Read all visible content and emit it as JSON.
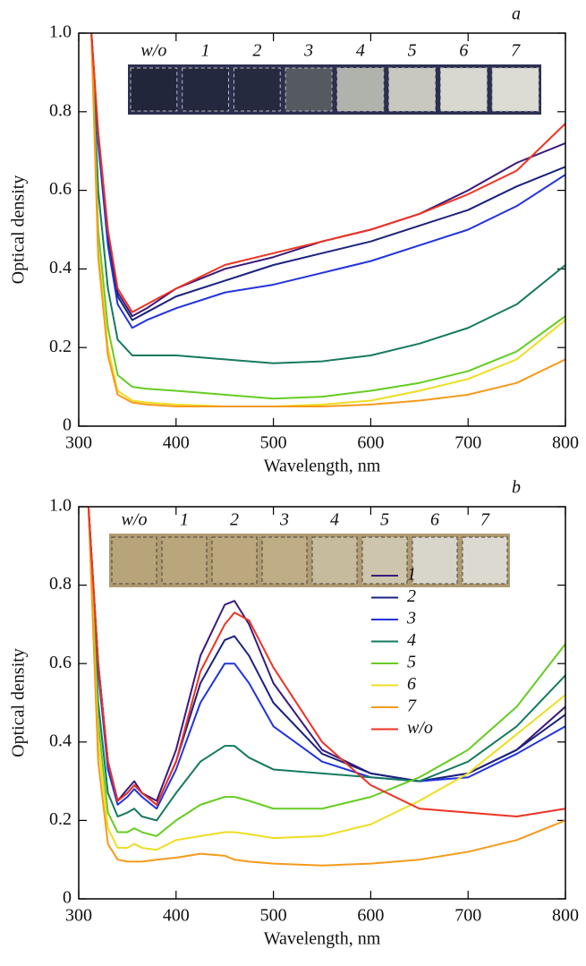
{
  "chart_data": [
    {
      "type": "line",
      "panel_label": "a",
      "xlabel": "Wavelength, nm",
      "ylabel": "Optical density",
      "inset_labels": [
        "w/o",
        "1",
        "2",
        "3",
        "4",
        "5",
        "6",
        "7"
      ],
      "xlim": [
        300,
        800
      ],
      "xticks": [
        300,
        400,
        500,
        600,
        700,
        800
      ],
      "ylim": [
        0,
        1
      ],
      "yticks": [
        0,
        0.2,
        0.4,
        0.6,
        0.8,
        {
          "value": 1,
          "label": "1.0"
        }
      ],
      "x": [
        313,
        320,
        330,
        340,
        355,
        370,
        400,
        450,
        500,
        550,
        600,
        650,
        700,
        750,
        800
      ],
      "series": [
        {
          "color": "#3a1a7a",
          "values": [
            1.0,
            0.74,
            0.49,
            0.34,
            0.28,
            0.3,
            0.35,
            0.4,
            0.43,
            0.47,
            0.5,
            0.54,
            0.6,
            0.67,
            0.72
          ]
        },
        {
          "color": "#1a237e",
          "values": [
            1.0,
            0.73,
            0.48,
            0.33,
            0.27,
            0.29,
            0.33,
            0.37,
            0.41,
            0.44,
            0.47,
            0.51,
            0.55,
            0.61,
            0.66
          ]
        },
        {
          "color": "#2233dd",
          "values": [
            1.0,
            0.72,
            0.46,
            0.31,
            0.25,
            0.27,
            0.3,
            0.34,
            0.36,
            0.39,
            0.42,
            0.46,
            0.5,
            0.56,
            0.64
          ]
        },
        {
          "color": "#167a5f",
          "values": [
            1.0,
            0.6,
            0.35,
            0.22,
            0.18,
            0.18,
            0.18,
            0.17,
            0.16,
            0.165,
            0.18,
            0.21,
            0.25,
            0.31,
            0.41
          ]
        },
        {
          "color": "#66cc22",
          "values": [
            1.0,
            0.5,
            0.25,
            0.13,
            0.1,
            0.095,
            0.09,
            0.08,
            0.07,
            0.075,
            0.09,
            0.11,
            0.14,
            0.19,
            0.28
          ]
        },
        {
          "color": "#eedd22",
          "values": [
            1.0,
            0.45,
            0.2,
            0.09,
            0.065,
            0.06,
            0.055,
            0.05,
            0.05,
            0.055,
            0.065,
            0.09,
            0.12,
            0.17,
            0.27
          ]
        },
        {
          "color": "#f59a1c",
          "values": [
            1.0,
            0.43,
            0.18,
            0.08,
            0.06,
            0.055,
            0.05,
            0.05,
            0.05,
            0.05,
            0.055,
            0.065,
            0.08,
            0.11,
            0.17
          ]
        },
        {
          "color": "#ee3322",
          "values": [
            1.0,
            0.75,
            0.5,
            0.35,
            0.29,
            0.31,
            0.35,
            0.41,
            0.44,
            0.47,
            0.5,
            0.54,
            0.59,
            0.65,
            0.77
          ]
        }
      ]
    },
    {
      "type": "line",
      "panel_label": "b",
      "xlabel": "Wavelength, nm",
      "ylabel": "Optical density",
      "inset_labels": [
        "w/o",
        "1",
        "2",
        "3",
        "4",
        "5",
        "6",
        "7"
      ],
      "legend": "right",
      "xlim": [
        300,
        800
      ],
      "xticks": [
        300,
        400,
        500,
        600,
        700,
        800
      ],
      "ylim": [
        0,
        1
      ],
      "yticks": [
        0,
        0.2,
        0.4,
        0.6,
        0.8,
        {
          "value": 1,
          "label": "1.0"
        }
      ],
      "x": [
        310,
        320,
        330,
        340,
        350,
        357,
        365,
        380,
        400,
        425,
        450,
        460,
        475,
        500,
        550,
        600,
        650,
        700,
        750,
        800
      ],
      "series": [
        {
          "name": "1",
          "color": "#3a1a7a",
          "values": [
            1.0,
            0.6,
            0.35,
            0.25,
            0.28,
            0.3,
            0.27,
            0.25,
            0.38,
            0.62,
            0.75,
            0.76,
            0.7,
            0.55,
            0.38,
            0.32,
            0.3,
            0.32,
            0.38,
            0.49
          ]
        },
        {
          "name": "2",
          "color": "#1a237e",
          "values": [
            1.0,
            0.6,
            0.35,
            0.25,
            0.27,
            0.29,
            0.27,
            0.24,
            0.35,
            0.55,
            0.66,
            0.67,
            0.62,
            0.5,
            0.37,
            0.32,
            0.3,
            0.32,
            0.38,
            0.47
          ]
        },
        {
          "name": "3",
          "color": "#2233dd",
          "values": [
            1.0,
            0.58,
            0.33,
            0.24,
            0.26,
            0.28,
            0.26,
            0.23,
            0.33,
            0.5,
            0.6,
            0.6,
            0.55,
            0.44,
            0.35,
            0.31,
            0.3,
            0.31,
            0.37,
            0.44
          ]
        },
        {
          "name": "4",
          "color": "#167a5f",
          "values": [
            1.0,
            0.5,
            0.27,
            0.21,
            0.22,
            0.23,
            0.21,
            0.2,
            0.27,
            0.35,
            0.39,
            0.39,
            0.36,
            0.33,
            0.32,
            0.31,
            0.3,
            0.35,
            0.44,
            0.57
          ]
        },
        {
          "name": "5",
          "color": "#66cc22",
          "values": [
            1.0,
            0.45,
            0.22,
            0.17,
            0.17,
            0.18,
            0.17,
            0.16,
            0.2,
            0.24,
            0.26,
            0.26,
            0.25,
            0.23,
            0.23,
            0.26,
            0.31,
            0.38,
            0.49,
            0.65
          ]
        },
        {
          "name": "6",
          "color": "#eedd22",
          "values": [
            1.0,
            0.4,
            0.18,
            0.13,
            0.13,
            0.14,
            0.13,
            0.125,
            0.15,
            0.16,
            0.17,
            0.17,
            0.165,
            0.155,
            0.16,
            0.19,
            0.25,
            0.32,
            0.42,
            0.52
          ]
        },
        {
          "name": "7",
          "color": "#f59a1c",
          "values": [
            1.0,
            0.35,
            0.14,
            0.1,
            0.095,
            0.095,
            0.095,
            0.1,
            0.105,
            0.115,
            0.11,
            0.1,
            0.095,
            0.09,
            0.085,
            0.09,
            0.1,
            0.12,
            0.15,
            0.2
          ]
        },
        {
          "name": "w/o",
          "color": "#ee3322",
          "values": [
            1.0,
            0.6,
            0.35,
            0.25,
            0.27,
            0.29,
            0.27,
            0.24,
            0.35,
            0.58,
            0.7,
            0.73,
            0.71,
            0.59,
            0.4,
            0.29,
            0.23,
            0.22,
            0.21,
            0.23
          ]
        }
      ]
    }
  ]
}
